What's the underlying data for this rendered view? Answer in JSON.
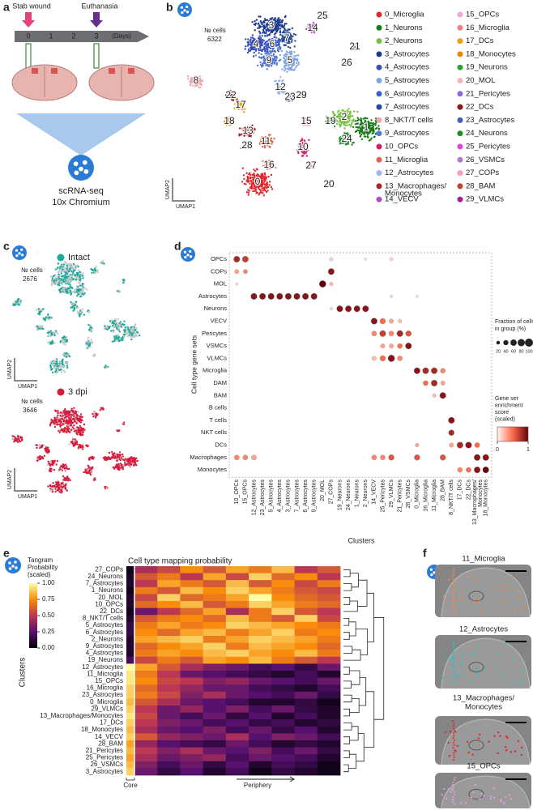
{
  "panel_a": {
    "letter": "a",
    "stab_label": "Stab wound",
    "euth_label": "Euthanasia",
    "days": [
      0,
      1,
      2,
      3
    ],
    "days_unit": "(Days)",
    "method": "scRNA-seq",
    "platform": "10x Chromium"
  },
  "panel_b": {
    "letter": "b",
    "cells_label": "№ cells",
    "cells": 6322,
    "umap_x": "UMAP1",
    "umap_y": "UMAP2",
    "cluster_labels": [
      "0",
      "1",
      "2",
      "3",
      "4",
      "5",
      "6",
      "7",
      "8",
      "9",
      "10",
      "11",
      "12",
      "13",
      "14",
      "15",
      "16",
      "17",
      "18",
      "19",
      "20",
      "21",
      "22",
      "23",
      "24",
      "25",
      "26",
      "27",
      "28",
      "29"
    ],
    "legend": [
      {
        "name": "0_Microglia",
        "color": "#e3262b"
      },
      {
        "name": "1_Neurons",
        "color": "#1a7a1a"
      },
      {
        "name": "2_Neurons",
        "color": "#7bc043"
      },
      {
        "name": "3_Astrocytes",
        "color": "#1f3a93"
      },
      {
        "name": "4_Astrocytes",
        "color": "#3a4fb8"
      },
      {
        "name": "5_Astrocytes",
        "color": "#7fa6dd"
      },
      {
        "name": "6_Astrocytes",
        "color": "#3c5fcc"
      },
      {
        "name": "7_Astrocytes",
        "color": "#2a4aa0"
      },
      {
        "name": "8_NKT/T cells",
        "color": "#f2a7a7"
      },
      {
        "name": "9_Astrocytes",
        "color": "#5a78d8"
      },
      {
        "name": "10_OPCs",
        "color": "#d41c6c"
      },
      {
        "name": "11_Microglia",
        "color": "#e8604a"
      },
      {
        "name": "12_Astrocytes",
        "color": "#9fb8e8"
      },
      {
        "name": [
          "13_Macrophages/",
          "Monocytes"
        ],
        "color": "#b22222"
      },
      {
        "name": "14_VECV",
        "color": "#b04fc0"
      },
      {
        "name": "15_OPCs",
        "color": "#f1a7d8"
      },
      {
        "name": "16_Microglia",
        "color": "#f08080"
      },
      {
        "name": "17_DCs",
        "color": "#f0a000"
      },
      {
        "name": "18_Monocytes",
        "color": "#e68a00"
      },
      {
        "name": "19_Neurons",
        "color": "#2ca02c"
      },
      {
        "name": "20_MOL",
        "color": "#f4b6c2"
      },
      {
        "name": "21_Pericytes",
        "color": "#8b6bd6"
      },
      {
        "name": "22_DCs",
        "color": "#8b1a1a"
      },
      {
        "name": "23_Astrocytes",
        "color": "#4060b0"
      },
      {
        "name": "24_Neurons",
        "color": "#228b22"
      },
      {
        "name": "25_Pericytes",
        "color": "#d44cd4"
      },
      {
        "name": "26_VSMCs",
        "color": "#b37acc"
      },
      {
        "name": "27_COPs",
        "color": "#f2a0b6"
      },
      {
        "name": "28_BAM",
        "color": "#c04030"
      },
      {
        "name": "29_VLMCs",
        "color": "#a02090"
      }
    ]
  },
  "panel_c": {
    "letter": "c",
    "groups": [
      {
        "name": "Intact",
        "color": "#1aaa9b",
        "cells_label": "№ cells",
        "cells": 2676,
        "umap_x": "UMAP1",
        "umap_y": "UMAP2"
      },
      {
        "name": "3 dpi",
        "color": "#d81b3c",
        "cells_label": "№ cells",
        "cells": 3646,
        "umap_x": "UMAP1",
        "umap_y": "UMAP2"
      }
    ]
  },
  "panel_d": {
    "letter": "d",
    "y_label": "Cell type gene sets",
    "x_label": "Clusters",
    "rows": [
      "OPCs",
      "COPs",
      "MOL",
      "Astrocytes",
      "Neurons",
      "VECV",
      "Pericytes",
      "VSMCs",
      "VLMCs",
      "Microglia",
      "DAM",
      "BAM",
      "B cells",
      "T cells",
      "NKT cells",
      "DCs",
      "Macrophages",
      "Monocytes"
    ],
    "columns": [
      "10_OPCs",
      "15_OPCs",
      "12_Astrocytes",
      "23_Astrocytes",
      "5_Astrocytes",
      "4_Astrocytes",
      "3_Astrocytes",
      "7_Astrocytes",
      "6_Astrocytes",
      "9_Astrocytes",
      "20_MOL",
      "27_COPs",
      "19_Neurons",
      "24_Neurons",
      "1_Neurons",
      "2_Neurons",
      "14_VECV",
      "25_Pericytes",
      "29_VLMCs",
      "21_Pericytes",
      "26_VSMCs",
      "0_Microglia",
      "16_Microglia",
      "11_Microglia",
      "28_BAM",
      "8_NKT/T cells",
      "17_DCs",
      "22_DCs",
      [
        "13_Macrophages/",
        "Monocytes"
      ],
      "18_Monocytes"
    ],
    "dots": [
      [
        0,
        0,
        60,
        0.8
      ],
      [
        0,
        1,
        60,
        0.7
      ],
      [
        0,
        11,
        20,
        0.1
      ],
      [
        0,
        15,
        10,
        0.05
      ],
      [
        0,
        18,
        20,
        0.1
      ],
      [
        1,
        0,
        30,
        0.3
      ],
      [
        1,
        1,
        30,
        0.4
      ],
      [
        1,
        11,
        60,
        0.9
      ],
      [
        2,
        10,
        70,
        1.0
      ],
      [
        2,
        0,
        10,
        0.05
      ],
      [
        2,
        11,
        20,
        0.2
      ],
      [
        3,
        2,
        60,
        0.9
      ],
      [
        3,
        3,
        60,
        0.9
      ],
      [
        3,
        4,
        60,
        0.9
      ],
      [
        3,
        5,
        60,
        0.9
      ],
      [
        3,
        6,
        60,
        0.9
      ],
      [
        3,
        7,
        60,
        0.9
      ],
      [
        3,
        8,
        60,
        0.9
      ],
      [
        3,
        9,
        60,
        0.9
      ],
      [
        3,
        18,
        10,
        0.1
      ],
      [
        3,
        21,
        10,
        0.05
      ],
      [
        4,
        12,
        60,
        0.9
      ],
      [
        4,
        13,
        60,
        0.9
      ],
      [
        4,
        14,
        60,
        0.9
      ],
      [
        4,
        15,
        60,
        0.9
      ],
      [
        4,
        11,
        10,
        0.1
      ],
      [
        5,
        16,
        60,
        0.9
      ],
      [
        5,
        17,
        50,
        0.5
      ],
      [
        5,
        18,
        30,
        0.3
      ],
      [
        5,
        19,
        20,
        0.2
      ],
      [
        6,
        16,
        40,
        0.4
      ],
      [
        6,
        17,
        60,
        0.7
      ],
      [
        6,
        18,
        40,
        0.4
      ],
      [
        6,
        19,
        60,
        0.8
      ],
      [
        6,
        20,
        50,
        0.6
      ],
      [
        7,
        17,
        30,
        0.3
      ],
      [
        7,
        18,
        30,
        0.3
      ],
      [
        7,
        19,
        40,
        0.5
      ],
      [
        7,
        20,
        60,
        0.9
      ],
      [
        8,
        16,
        30,
        0.2
      ],
      [
        8,
        17,
        50,
        0.5
      ],
      [
        8,
        18,
        70,
        0.9
      ],
      [
        8,
        19,
        40,
        0.4
      ],
      [
        9,
        21,
        60,
        0.9
      ],
      [
        9,
        22,
        60,
        0.8
      ],
      [
        9,
        23,
        60,
        0.8
      ],
      [
        9,
        24,
        40,
        0.4
      ],
      [
        10,
        22,
        40,
        0.5
      ],
      [
        10,
        23,
        60,
        0.8
      ],
      [
        10,
        24,
        30,
        0.3
      ],
      [
        11,
        24,
        60,
        0.9
      ],
      [
        11,
        23,
        20,
        0.2
      ],
      [
        13,
        25,
        60,
        0.9
      ],
      [
        14,
        25,
        50,
        0.8
      ],
      [
        15,
        26,
        60,
        0.8
      ],
      [
        15,
        27,
        60,
        0.9
      ],
      [
        15,
        28,
        40,
        0.5
      ],
      [
        15,
        25,
        30,
        0.3
      ],
      [
        15,
        21,
        20,
        0.3
      ],
      [
        16,
        0,
        40,
        0.4
      ],
      [
        16,
        1,
        40,
        0.4
      ],
      [
        16,
        2,
        40,
        0.3
      ],
      [
        16,
        16,
        40,
        0.4
      ],
      [
        16,
        17,
        40,
        0.4
      ],
      [
        16,
        18,
        50,
        0.6
      ],
      [
        16,
        21,
        50,
        0.6
      ],
      [
        16,
        24,
        50,
        0.6
      ],
      [
        16,
        28,
        60,
        0.9
      ],
      [
        16,
        29,
        60,
        0.9
      ],
      [
        17,
        26,
        40,
        0.4
      ],
      [
        17,
        27,
        40,
        0.5
      ],
      [
        17,
        28,
        60,
        0.9
      ],
      [
        17,
        29,
        60,
        1.0
      ]
    ],
    "size_legend": {
      "title": [
        "Fraction of cells",
        "in group (%)"
      ],
      "lim": [
        0,
        100
      ],
      "ticks": [
        20,
        40,
        60,
        80,
        100
      ]
    },
    "colorbar": {
      "title": [
        "Gene set",
        "enrichment",
        "score",
        "(scaled)"
      ],
      "lim": [
        0,
        1
      ],
      "ticks": [
        0,
        1
      ],
      "colors": [
        "#fff5f0",
        "#fb6a4a",
        "#67000d"
      ]
    }
  },
  "panel_e": {
    "letter": "e",
    "title": "Cell type mapping probability",
    "y_label": "Clusters",
    "core_label": "Core",
    "periphery_label": "Periphery",
    "rows": [
      "27_COPs",
      "24_Neurons",
      "7_Astrocytes",
      "1_Neurons",
      "20_MOL",
      "10_OPCs",
      "22_DCs",
      "8_NKT/T cells",
      "5_Astrocytes",
      "6_Astrocytes",
      "2_Neurons",
      "9_Astrocytes",
      "4_Astrocytes",
      "19_Neurons",
      "12_Astrocytes",
      "11_Microglia",
      "15_OPCs",
      "16_Microglia",
      "23_Astrocytes",
      "0_Microglia",
      "29_VLMCs",
      "13_Macrophages/Monocytes",
      "17_DCs",
      "18_Monocytes",
      "14_VECV",
      "28_BAM",
      "21_Pericytes",
      "25_Pericytes",
      "26_VSMCs",
      "3_Astrocytes"
    ],
    "values": [
      [
        0.05,
        0.45,
        0.55,
        0.75,
        0.6,
        0.8,
        0.7,
        0.85,
        0.5,
        0.6
      ],
      [
        0.08,
        0.6,
        0.7,
        0.5,
        0.8,
        0.55,
        0.9,
        0.65,
        0.75,
        0.5
      ],
      [
        0.1,
        0.5,
        0.8,
        0.7,
        0.6,
        0.85,
        0.6,
        0.75,
        0.55,
        0.7
      ],
      [
        0.05,
        0.7,
        0.6,
        0.85,
        0.75,
        0.9,
        0.8,
        0.7,
        0.6,
        0.55
      ],
      [
        0.1,
        0.55,
        0.9,
        0.65,
        0.7,
        0.8,
        1.0,
        0.75,
        0.65,
        0.6
      ],
      [
        0.1,
        0.65,
        0.75,
        0.85,
        0.6,
        0.7,
        0.9,
        0.8,
        0.7,
        0.65
      ],
      [
        0.05,
        0.3,
        0.5,
        0.65,
        0.8,
        0.45,
        0.7,
        0.9,
        0.6,
        0.5
      ],
      [
        0.1,
        0.6,
        0.7,
        0.75,
        0.65,
        0.85,
        0.7,
        0.6,
        0.9,
        0.55
      ],
      [
        0.15,
        0.7,
        0.8,
        0.7,
        0.75,
        0.9,
        0.85,
        0.8,
        0.75,
        0.7
      ],
      [
        0.15,
        0.75,
        0.65,
        0.8,
        0.85,
        0.7,
        0.8,
        0.9,
        0.7,
        0.75
      ],
      [
        0.1,
        0.8,
        0.85,
        0.9,
        0.7,
        0.8,
        0.9,
        0.85,
        0.8,
        0.7
      ],
      [
        0.1,
        0.65,
        0.75,
        0.8,
        0.9,
        0.7,
        0.85,
        0.8,
        0.75,
        0.65
      ],
      [
        0.1,
        0.7,
        0.8,
        0.75,
        0.85,
        0.9,
        0.8,
        0.75,
        0.85,
        0.7
      ],
      [
        0.2,
        0.55,
        0.7,
        0.6,
        0.8,
        0.75,
        0.85,
        0.7,
        0.6,
        0.5
      ],
      [
        1.0,
        0.8,
        0.6,
        0.45,
        0.35,
        0.3,
        0.2,
        0.25,
        0.15,
        0.3
      ],
      [
        0.95,
        0.7,
        0.5,
        0.3,
        0.25,
        0.2,
        0.15,
        0.1,
        0.2,
        0.1
      ],
      [
        0.95,
        0.75,
        0.55,
        0.5,
        0.35,
        0.4,
        0.3,
        0.25,
        0.2,
        0.3
      ],
      [
        0.9,
        0.65,
        0.5,
        0.4,
        0.3,
        0.3,
        0.2,
        0.15,
        0.1,
        0.2
      ],
      [
        0.9,
        0.7,
        0.55,
        0.35,
        0.45,
        0.3,
        0.25,
        0.2,
        0.3,
        0.15
      ],
      [
        0.85,
        0.6,
        0.45,
        0.3,
        0.25,
        0.2,
        0.1,
        0.1,
        0.15,
        0.05
      ],
      [
        0.9,
        0.5,
        0.3,
        0.4,
        0.25,
        0.35,
        0.2,
        0.3,
        0.15,
        0.1
      ],
      [
        0.95,
        0.55,
        0.3,
        0.2,
        0.3,
        0.15,
        0.25,
        0.1,
        0.2,
        0.1
      ],
      [
        0.9,
        0.5,
        0.35,
        0.3,
        0.2,
        0.25,
        0.15,
        0.2,
        0.1,
        0.15
      ],
      [
        0.85,
        0.45,
        0.3,
        0.25,
        0.35,
        0.2,
        0.3,
        0.15,
        0.25,
        0.1
      ],
      [
        0.9,
        0.6,
        0.4,
        0.35,
        0.3,
        0.45,
        0.25,
        0.35,
        0.3,
        0.2
      ],
      [
        0.8,
        0.4,
        0.25,
        0.2,
        0.15,
        0.3,
        0.2,
        0.1,
        0.15,
        0.1
      ],
      [
        0.85,
        0.5,
        0.35,
        0.45,
        0.3,
        0.25,
        0.35,
        0.2,
        0.3,
        0.15
      ],
      [
        0.8,
        0.45,
        0.3,
        0.35,
        0.4,
        0.2,
        0.3,
        0.25,
        0.2,
        0.1
      ],
      [
        0.85,
        0.35,
        0.2,
        0.3,
        0.15,
        0.25,
        0.1,
        0.2,
        0.15,
        0.05
      ],
      [
        0.9,
        0.3,
        0.15,
        0.25,
        0.1,
        0.2,
        0.05,
        0.15,
        0.1,
        0.05
      ]
    ],
    "colorbar": {
      "title": [
        "Tangram",
        "Probability",
        "(scaled)"
      ],
      "lim": [
        0,
        1
      ],
      "ticks": [
        {
          "value": 1,
          "label": "1.00"
        },
        {
          "value": 0.75,
          "label": "0.75"
        },
        {
          "value": 0.5,
          "label": "0.50"
        },
        {
          "value": 0.25,
          "label": "0.25"
        },
        {
          "value": 0,
          "label": "0.00"
        }
      ],
      "colors": [
        "#000004",
        "#56106e",
        "#bb3754",
        "#f98c0a",
        "#fcffa4"
      ]
    }
  },
  "panel_f": {
    "letter": "f",
    "images": [
      {
        "label": "11_Microglia",
        "color": "#f08a4b"
      },
      {
        "label": "12_Astrocytes",
        "color": "#22c4c4"
      },
      {
        "label": [
          "13_Macrophages/",
          "Monocytes"
        ],
        "color": "#e0262b"
      },
      {
        "label": "15_OPCs",
        "color": "#e79be0"
      }
    ]
  }
}
